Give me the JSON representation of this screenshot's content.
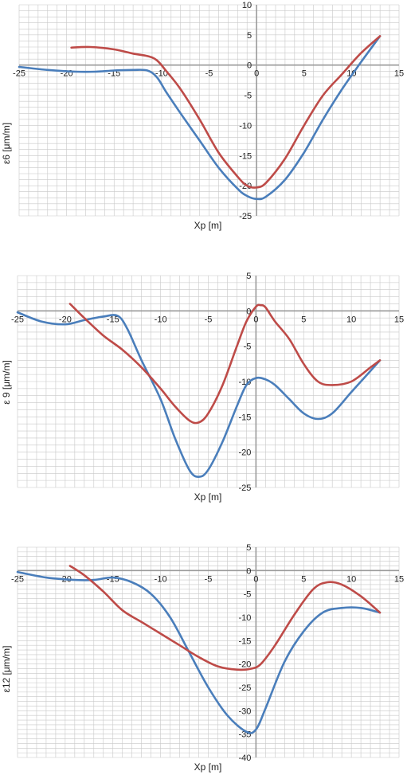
{
  "colors": {
    "blue": "#4a7ebb",
    "red": "#be4b48",
    "grid": "#c8c8c8",
    "axis": "#9a9a9a",
    "text": "#222222"
  },
  "chart_data": [
    {
      "type": "line",
      "xlabel": "Xp  [m]",
      "ylabel": "ε6  [μm/m]",
      "xlim": [
        -25,
        15
      ],
      "ylim": [
        -25,
        10
      ],
      "x_ticks": [
        "-25",
        "-20",
        "-15",
        "-10",
        "-5",
        "0",
        "5",
        "10",
        "15"
      ],
      "y_ticks": [
        "10",
        "5",
        "0",
        "-5",
        "-10",
        "-15",
        "-20",
        "-25"
      ],
      "grid": true,
      "legend": "none",
      "series": [
        {
          "color": "blue",
          "x": [
            -25,
            -22,
            -19,
            -17,
            -15,
            -13,
            -11.5,
            -10.5,
            -9.5,
            -8,
            -6,
            -4,
            -2,
            -1,
            0,
            1,
            3,
            5,
            7,
            9,
            11,
            13
          ],
          "y": [
            -0.3,
            -0.8,
            -1.1,
            -1.1,
            -0.9,
            -0.8,
            -0.9,
            -2,
            -4.5,
            -8,
            -12.5,
            -17,
            -20.5,
            -21.7,
            -22.2,
            -21.8,
            -19,
            -14.5,
            -9,
            -4,
            0.5,
            4.8
          ]
        },
        {
          "color": "red",
          "x": [
            -19.5,
            -17.5,
            -15,
            -13,
            -11.5,
            -10.5,
            -9.5,
            -8,
            -6,
            -4,
            -2,
            -1,
            0,
            1,
            3,
            5,
            7,
            9,
            11,
            13
          ],
          "y": [
            2.9,
            3.0,
            2.6,
            1.9,
            1.5,
            0.8,
            -1,
            -4,
            -9,
            -14.5,
            -18.5,
            -20,
            -20.3,
            -19.5,
            -15.5,
            -10,
            -5,
            -1.5,
            2,
            4.8
          ]
        }
      ]
    },
    {
      "type": "line",
      "xlabel": "Xp  [m]",
      "ylabel": "ε 9  [μm/m]",
      "xlim": [
        -25,
        15
      ],
      "ylim": [
        -25,
        5
      ],
      "x_ticks": [
        "-25",
        "-20",
        "-15",
        "-10",
        "-5",
        "0",
        "5",
        "10",
        "15"
      ],
      "y_ticks": [
        "5",
        "0",
        "-5",
        "-10",
        "-15",
        "-20",
        "-25"
      ],
      "grid": true,
      "legend": "none",
      "series": [
        {
          "color": "blue",
          "x": [
            -25,
            -22.5,
            -20,
            -18,
            -16,
            -14.5,
            -13.5,
            -12,
            -10,
            -8.5,
            -7,
            -6,
            -5,
            -3.5,
            -2,
            -1,
            0,
            1,
            2,
            3.5,
            5,
            6.5,
            8,
            10,
            12,
            13
          ],
          "y": [
            -0.2,
            -1.5,
            -1.9,
            -1.3,
            -0.8,
            -0.7,
            -2.5,
            -7,
            -12.5,
            -18,
            -22.5,
            -23.5,
            -22.5,
            -18.5,
            -13.5,
            -10.5,
            -9.5,
            -9.7,
            -10.5,
            -12.5,
            -14.5,
            -15.3,
            -14.5,
            -11.5,
            -8.5,
            -7
          ]
        },
        {
          "color": "red",
          "x": [
            -19.5,
            -18,
            -16,
            -14,
            -12,
            -10,
            -8.5,
            -7,
            -6,
            -5,
            -3.5,
            -2,
            -1,
            0,
            0.5,
            1,
            2,
            3.5,
            5,
            6.5,
            8,
            10,
            12,
            13
          ],
          "y": [
            1,
            -1,
            -3.5,
            -5.5,
            -8,
            -11,
            -13.5,
            -15.5,
            -15.8,
            -14.5,
            -10.5,
            -5,
            -1.5,
            0.6,
            0.8,
            0.5,
            -1.5,
            -4,
            -7.5,
            -10,
            -10.5,
            -10,
            -8,
            -7
          ]
        }
      ]
    },
    {
      "type": "line",
      "xlabel": "Xp  [m]",
      "ylabel": "ε12  [μm/m]",
      "xlim": [
        -25,
        15
      ],
      "ylim": [
        -40,
        5
      ],
      "x_ticks": [
        "-25",
        "-20",
        "-15",
        "-10",
        "-5",
        "0",
        "5",
        "10",
        "15"
      ],
      "y_ticks": [
        "5",
        "0",
        "-5",
        "-10",
        "-15",
        "-20",
        "-25",
        "-30",
        "-35",
        "-40"
      ],
      "grid": true,
      "legend": "none",
      "series": [
        {
          "color": "blue",
          "x": [
            -25,
            -22,
            -19,
            -17,
            -15,
            -13,
            -11,
            -9,
            -7,
            -5,
            -3,
            -1,
            0,
            1,
            3,
            5,
            7,
            9,
            11,
            13
          ],
          "y": [
            -0.3,
            -1.5,
            -2,
            -2,
            -1.5,
            -2.5,
            -5,
            -10,
            -17.5,
            -25,
            -31,
            -34.5,
            -34,
            -29.5,
            -19.5,
            -13,
            -9,
            -8,
            -8,
            -9
          ]
        },
        {
          "color": "red",
          "x": [
            -19.5,
            -18,
            -16,
            -14,
            -12,
            -10,
            -8,
            -6,
            -4,
            -2,
            -0.5,
            0.5,
            2,
            4,
            6,
            7.5,
            9,
            11,
            13
          ],
          "y": [
            1,
            -1,
            -4.5,
            -8.5,
            -11,
            -13.5,
            -16,
            -18.5,
            -20.5,
            -21.2,
            -21,
            -20,
            -16,
            -9.5,
            -4,
            -2.5,
            -3,
            -5.5,
            -9
          ]
        }
      ]
    }
  ]
}
